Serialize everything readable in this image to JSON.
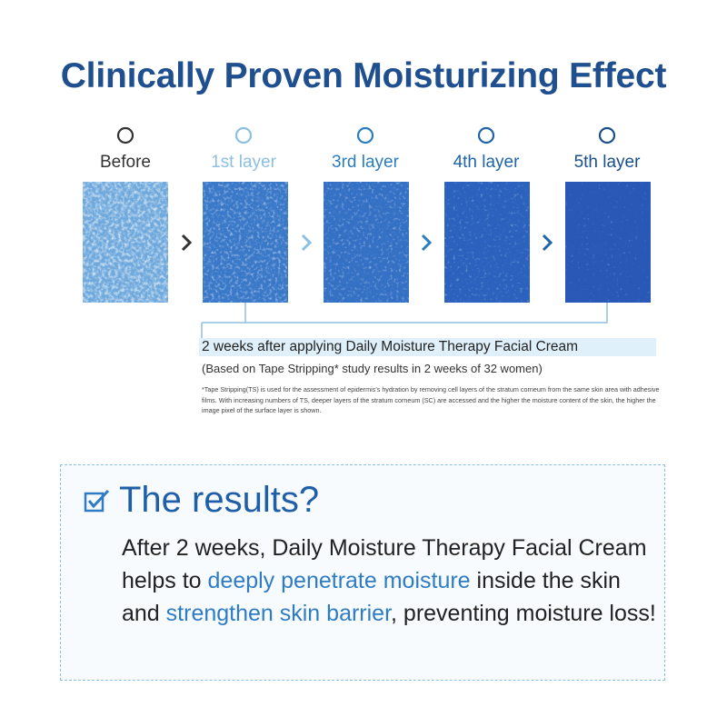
{
  "title": "Clinically Proven Moisturizing Effect",
  "stages": [
    {
      "label": "Before",
      "color": "#333333",
      "tone": "#6ea8dc"
    },
    {
      "label": "1st layer",
      "color": "#8cc0e2",
      "tone": "#3a78c8"
    },
    {
      "label": "3rd layer",
      "color": "#2b7cc0",
      "tone": "#3470c4"
    },
    {
      "label": "4th layer",
      "color": "#1f64a8",
      "tone": "#2c62bd"
    },
    {
      "label": "5th layer",
      "color": "#1a4f8e",
      "tone": "#2958b6"
    }
  ],
  "caption": {
    "main": "2 weeks after applying Daily Moisture Therapy Facial Cream",
    "sub": "(Based on Tape Stripping* study results in 2 weeks of 32 women)",
    "footnote": "*Tape Stripping(TS) is used for the assessment of epidermis's hydration by removing cell layers of the stratum corneum from the same skin area with adhesive films. With increasing numbers of TS, deeper layers of the stratum corneum (SC) are accessed and the higher the moisture content of the skin, the higher the image pixel of the surface layer is shown."
  },
  "results": {
    "heading": "The results?",
    "body_1": "After 2 weeks, Daily Moisture Therapy Facial Cream helps to ",
    "highlight_1": "deeply penetrate moisture",
    "body_2": " inside the skin and ",
    "highlight_2": "strengthen skin barrier",
    "body_3": ", preventing moisture loss!"
  },
  "colors": {
    "title": "#1f4f8f",
    "accent": "#2f7cc4",
    "caption_bg": "#dff0fa"
  }
}
